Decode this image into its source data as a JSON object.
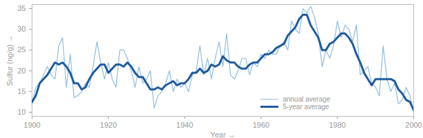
{
  "chart_data": {
    "type": "line",
    "x_label": "Year",
    "y_label": "Sulfur (ng/g)",
    "x": [
      1900,
      1901,
      1902,
      1903,
      1904,
      1905,
      1906,
      1907,
      1908,
      1909,
      1910,
      1911,
      1912,
      1913,
      1914,
      1915,
      1916,
      1917,
      1918,
      1919,
      1920,
      1921,
      1922,
      1923,
      1924,
      1925,
      1926,
      1927,
      1928,
      1929,
      1930,
      1931,
      1932,
      1933,
      1934,
      1935,
      1936,
      1937,
      1938,
      1939,
      1940,
      1941,
      1942,
      1943,
      1944,
      1945,
      1946,
      1947,
      1948,
      1949,
      1950,
      1951,
      1952,
      1953,
      1954,
      1955,
      1956,
      1957,
      1958,
      1959,
      1960,
      1961,
      1962,
      1963,
      1964,
      1965,
      1966,
      1967,
      1968,
      1969,
      1970,
      1971,
      1972,
      1973,
      1974,
      1975,
      1976,
      1977,
      1978,
      1979,
      1980,
      1981,
      1982,
      1983,
      1984,
      1985,
      1986,
      1987,
      1988,
      1989,
      1990,
      1991,
      1992,
      1993,
      1994,
      1995,
      1996,
      1997,
      1998,
      1999,
      2000
    ],
    "series": [
      {
        "name": "annual average",
        "color": "#8fbde0",
        "line_style": "solid",
        "values": [
          12,
          16,
          17,
          19,
          21,
          19,
          18,
          26,
          28,
          16,
          24,
          13.5,
          14,
          15,
          17,
          16,
          21,
          27,
          22,
          18,
          22,
          18,
          16,
          25,
          25,
          23,
          20,
          16,
          21,
          17,
          18,
          20,
          11,
          14,
          15,
          17,
          20,
          15,
          18,
          16,
          17,
          15,
          19,
          20,
          26,
          19,
          23,
          18,
          23,
          27,
          21,
          29,
          19,
          18,
          20,
          23,
          23,
          19,
          22,
          21,
          24,
          23,
          25,
          24,
          24,
          26,
          27,
          25,
          32,
          30,
          29,
          35,
          34,
          35.5,
          33,
          29,
          21,
          25,
          23,
          26,
          32,
          28,
          31,
          30,
          27,
          31,
          19,
          20,
          21,
          17,
          16,
          14,
          26,
          18,
          15,
          17,
          12,
          13,
          16,
          14,
          10
        ]
      },
      {
        "name": "5-year average",
        "color": "#1f5a9e",
        "line_style": "solid",
        "values": [
          12.5,
          14,
          17,
          18,
          19,
          20.5,
          22,
          21.5,
          22,
          21,
          19.5,
          17,
          17,
          15.5,
          16,
          18,
          19.5,
          20.5,
          21.5,
          21.5,
          19.5,
          20.5,
          21.5,
          21.5,
          21,
          22,
          21,
          19.5,
          18.5,
          18.5,
          17,
          15.5,
          15.5,
          16,
          15.5,
          16.5,
          17,
          17.5,
          16.5,
          17,
          17,
          18,
          19.5,
          19.5,
          20.5,
          19.5,
          20,
          21.5,
          21,
          21.5,
          23.5,
          22.5,
          22,
          22,
          21,
          20.5,
          20.5,
          21.5,
          22,
          22,
          23,
          24,
          24,
          24.5,
          25.5,
          26,
          26.5,
          28.5,
          29.5,
          30.5,
          32.5,
          33.5,
          33.5,
          31,
          29.5,
          28,
          25,
          25,
          26.5,
          27,
          28,
          29,
          29,
          28,
          26.5,
          24,
          22,
          19.5,
          18,
          16.5,
          18,
          18,
          18,
          18,
          18,
          17.5,
          15.5,
          14.5,
          13,
          12.5,
          10.5
        ]
      }
    ],
    "xlim": [
      1900,
      2000
    ],
    "xticks": [
      1900,
      1920,
      1940,
      1960,
      1980,
      2000
    ],
    "ylim": [
      9,
      36
    ],
    "yticks": [
      10,
      15,
      20,
      25,
      30,
      35
    ],
    "grid": false,
    "legend": "bottom-right"
  }
}
